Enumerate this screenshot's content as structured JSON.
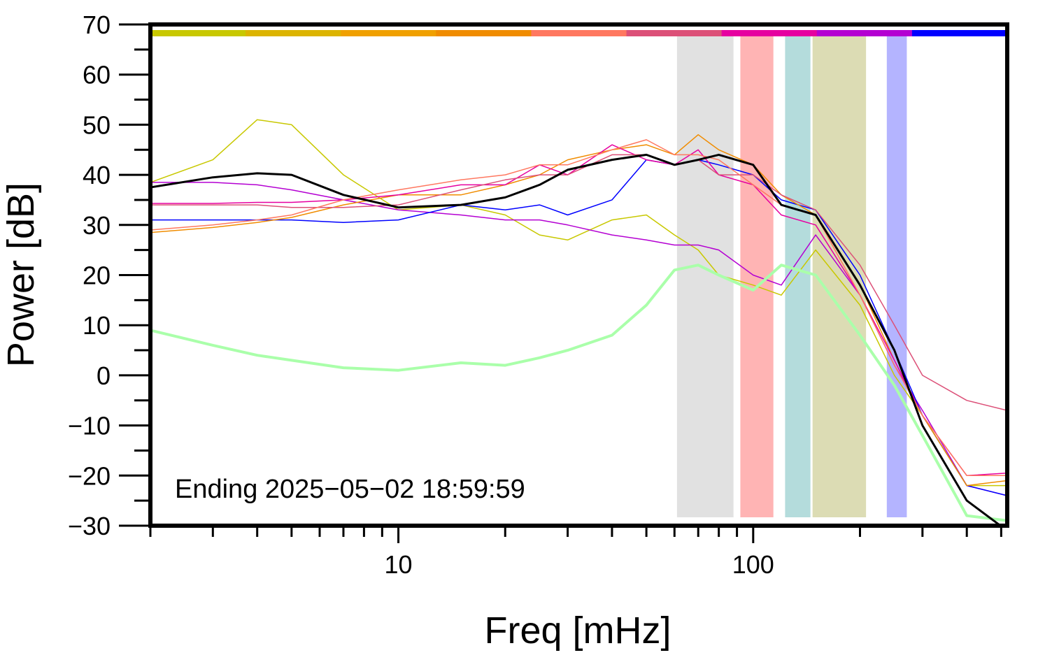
{
  "chart_data": {
    "type": "line",
    "xlabel": "Freq [mHz]",
    "ylabel": "Power [dB]",
    "annotation": "Ending 2025−05−02 18:59:59",
    "xscale": "log",
    "xlim": [
      2,
      520
    ],
    "ylim": [
      -30,
      70
    ],
    "xticks": [
      10,
      100
    ],
    "xminor_ticks": [
      2,
      3,
      4,
      5,
      6,
      7,
      8,
      9,
      20,
      30,
      40,
      50,
      60,
      70,
      80,
      90,
      200,
      300,
      400,
      500
    ],
    "yticks": [
      {
        "value": -30,
        "label": "−30"
      },
      {
        "value": -20,
        "label": "−20"
      },
      {
        "value": -10,
        "label": "−10"
      },
      0,
      10,
      20,
      30,
      40,
      50,
      60,
      70
    ],
    "yminor_ticks": [
      -25,
      -15,
      -5,
      5,
      15,
      25,
      35,
      45,
      55,
      65
    ],
    "top_bar_colors": [
      "#c8c800",
      "#dcb400",
      "#f0a000",
      "#f08c00",
      "#ff7860",
      "#dc5078",
      "#e600a0",
      "#b400d2",
      "#0000ff"
    ],
    "bands": [
      {
        "x0": 61,
        "x1": 88,
        "color": "#e1e1e1"
      },
      {
        "x0": 92,
        "x1": 114,
        "color": "#ffb4b4"
      },
      {
        "x0": 123,
        "x1": 145,
        "color": "#b4dcdc"
      },
      {
        "x0": 147,
        "x1": 208,
        "color": "#dcdcb4"
      },
      {
        "x0": 238,
        "x1": 271,
        "color": "#b4b4ff"
      }
    ],
    "x": [
      2,
      3,
      4,
      5,
      7,
      10,
      15,
      20,
      25,
      30,
      40,
      50,
      60,
      70,
      80,
      100,
      120,
      150,
      200,
      250,
      300,
      400,
      520
    ],
    "series": [
      {
        "color": "#c8c800",
        "width": 1.5,
        "values": [
          38.5,
          43,
          51,
          50,
          40,
          33,
          34,
          32,
          28,
          27,
          31,
          32,
          28,
          25,
          20,
          18,
          16,
          25,
          14,
          0,
          -8,
          -22,
          -22
        ]
      },
      {
        "color": "#b400d2",
        "width": 1.5,
        "values": [
          38.5,
          38.5,
          38,
          37,
          35,
          33,
          32,
          31,
          31,
          30,
          28,
          27,
          26,
          26,
          25,
          20,
          18,
          28,
          16,
          2,
          -7,
          -22,
          -24
        ]
      },
      {
        "color": "#0000ff",
        "width": 1.5,
        "values": [
          31,
          31,
          31,
          31,
          30.5,
          31,
          34,
          33,
          34,
          32,
          35,
          43,
          42,
          43,
          42,
          40,
          35,
          33,
          20,
          5,
          -8,
          -22,
          -24
        ]
      },
      {
        "color": "#f08c00",
        "width": 1.5,
        "values": [
          28.5,
          29.5,
          30.5,
          31.5,
          34,
          36,
          36,
          38,
          40,
          43,
          45,
          46,
          44,
          48,
          45,
          42,
          36,
          32,
          18,
          3,
          -8,
          -22,
          -21
        ]
      },
      {
        "color": "#e600a0",
        "width": 1.5,
        "values": [
          34.3,
          34.3,
          34.5,
          34.5,
          35,
          36,
          38,
          38,
          42,
          40,
          46,
          43,
          42,
          45,
          40,
          38,
          32,
          30,
          16,
          3,
          -8,
          -20,
          -19.5
        ]
      },
      {
        "color": "#dc5078",
        "width": 1.5,
        "values": [
          34,
          34,
          34,
          33.5,
          33.5,
          34,
          37,
          39,
          40,
          40,
          44,
          44,
          42,
          43,
          40,
          40,
          36,
          33,
          22,
          10,
          0,
          -5,
          -7
        ]
      },
      {
        "color": "#ff7860",
        "width": 1.5,
        "values": [
          29,
          30,
          31,
          32,
          35,
          37,
          39,
          40,
          42,
          42,
          45,
          47,
          44,
          44,
          43,
          38,
          34,
          32,
          16,
          2,
          -8,
          -20,
          -20
        ]
      },
      {
        "color": "#aaffaa",
        "width": 4,
        "values": [
          9,
          6,
          4,
          3,
          1.5,
          1,
          2.5,
          2,
          3.5,
          5,
          8,
          14,
          21,
          22,
          20,
          17,
          22,
          20,
          8,
          -2,
          -12,
          -28,
          -29
        ]
      },
      {
        "color": "#000000",
        "width": 3,
        "values": [
          37.5,
          39.5,
          40.3,
          40,
          36,
          33.5,
          34,
          35.5,
          38,
          41,
          43,
          44,
          42,
          43,
          44,
          42,
          34,
          32,
          18,
          5,
          -10,
          -25,
          -31
        ]
      }
    ]
  }
}
